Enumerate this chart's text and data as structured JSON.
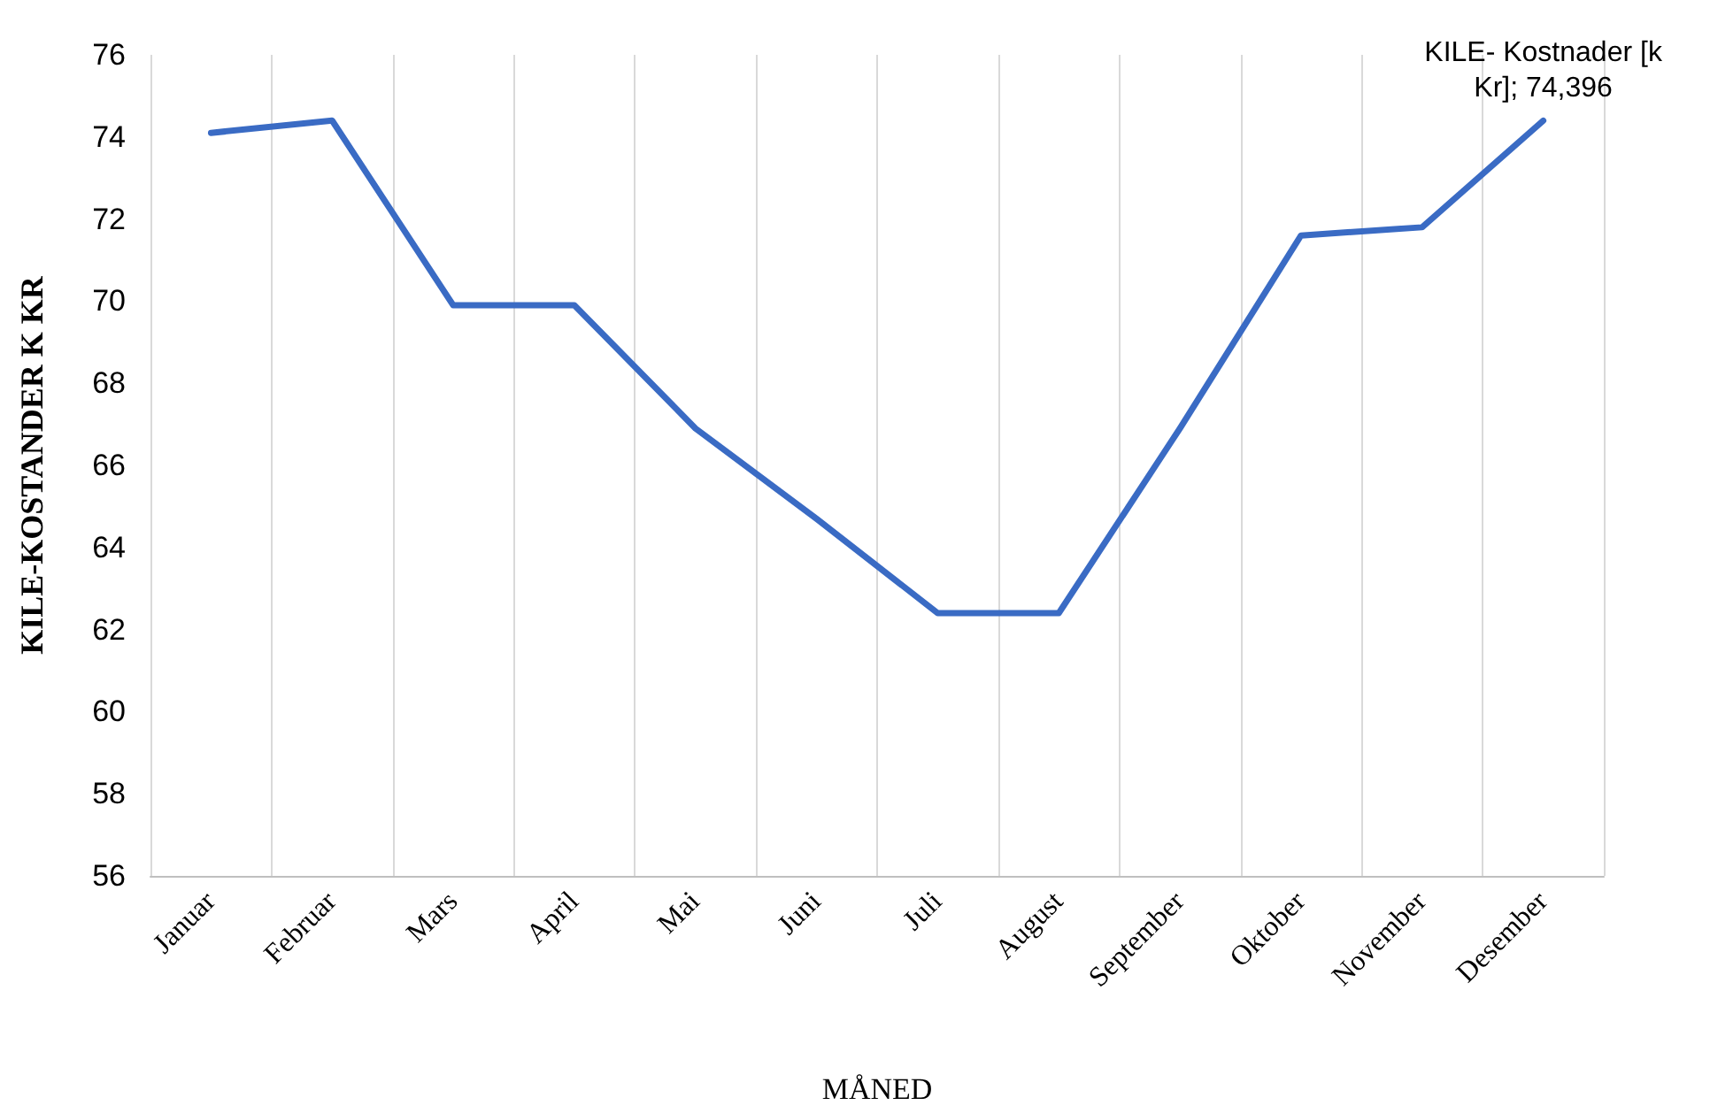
{
  "chart_data": {
    "type": "line",
    "xlabel": "MÅNED",
    "ylabel": "KILE-KOSTANDER K KR",
    "categories": [
      "Januar",
      "Februar",
      "Mars",
      "April",
      "Mai",
      "Juni",
      "Juli",
      "August",
      "September",
      "Oktober",
      "November",
      "Desember"
    ],
    "series": [
      {
        "color": "#3a6bc4",
        "values": [
          74.1,
          74.4,
          69.9,
          69.9,
          66.9,
          64.7,
          62.4,
          62.4,
          66.9,
          71.6,
          71.8,
          74.396
        ]
      }
    ],
    "annotations": [
      {
        "text": "KILE- Kostnader [k\nKr]; 74,396",
        "x": "Desember",
        "y": 74.396
      }
    ],
    "ylim": [
      56,
      76
    ],
    "yticks": [
      56,
      58,
      60,
      62,
      64,
      66,
      68,
      70,
      72,
      74,
      76
    ],
    "grid": "x",
    "marker": "none",
    "line_style": "solid"
  }
}
